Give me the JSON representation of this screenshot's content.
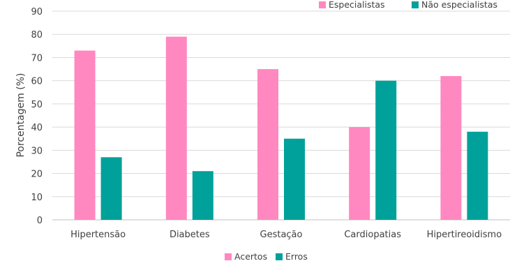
{
  "chart_data": {
    "type": "bar",
    "title": "",
    "xlabel": "",
    "ylabel": "Porcentagem (%)",
    "ylim": [
      0,
      90
    ],
    "yticks": [
      0,
      10,
      20,
      30,
      40,
      50,
      60,
      70,
      80,
      90
    ],
    "grid": true,
    "categories": [
      "Hipertensão",
      "Diabetes",
      "Gestação",
      "Cardiopatias",
      "Hipertireoidismo"
    ],
    "series": [
      {
        "name": "Acertos",
        "color": "#ff88c0",
        "values": [
          73,
          79,
          65,
          40,
          62
        ]
      },
      {
        "name": "Erros",
        "color": "#00a19a",
        "values": [
          27,
          21,
          35,
          60,
          38
        ]
      }
    ],
    "legend_bottom": [
      "Acertos",
      "Erros"
    ],
    "legend_top": [
      {
        "label": "Especialistas",
        "color": "#ff88c0"
      },
      {
        "label": "Não especialistas",
        "color": "#00a19a"
      }
    ],
    "legend_top_placement": "top-right",
    "legend_bottom_placement": "bottom-center"
  }
}
